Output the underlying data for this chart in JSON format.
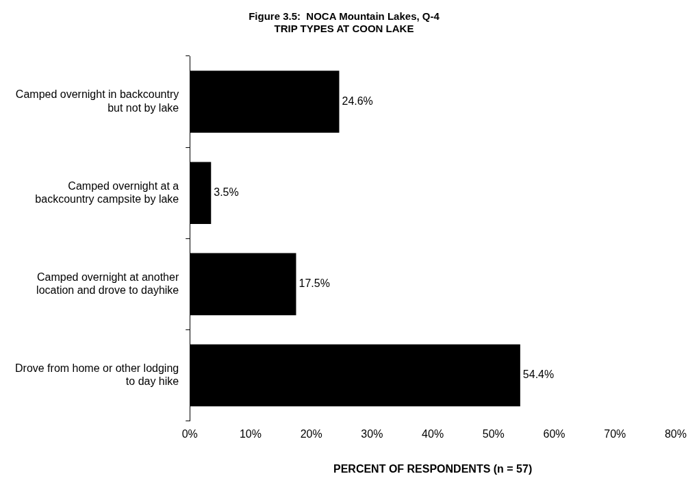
{
  "chart_data": {
    "type": "bar",
    "orientation": "horizontal",
    "title": "Figure 3.5:  NOCA Mountain Lakes, Q-4",
    "subtitle": "TRIP TYPES AT COON LAKE",
    "xlabel": "PERCENT OF RESPONDENTS (n = 57)",
    "categories": [
      "Camped overnight in backcountry but not by lake",
      "Camped overnight at a backcountry campsite by lake",
      "Camped overnight at another location and drove to dayhike",
      "Drove from home or other lodging to day hike"
    ],
    "values": [
      24.6,
      3.5,
      17.5,
      54.4
    ],
    "color": "#000000",
    "value_labels": [
      "24.6%",
      "3.5%",
      "17.5%",
      "54.4%"
    ],
    "xlim": [
      0,
      80
    ],
    "xticks": [
      {
        "value": 0,
        "label": "0%"
      },
      {
        "value": 10,
        "label": "10%"
      },
      {
        "value": 20,
        "label": "20%"
      },
      {
        "value": 30,
        "label": "30%"
      },
      {
        "value": 40,
        "label": "40%"
      },
      {
        "value": 50,
        "label": "50%"
      },
      {
        "value": 60,
        "label": "60%"
      },
      {
        "value": 70,
        "label": "70%"
      },
      {
        "value": 80,
        "label": "80%"
      }
    ],
    "grid": false,
    "legend": false
  }
}
